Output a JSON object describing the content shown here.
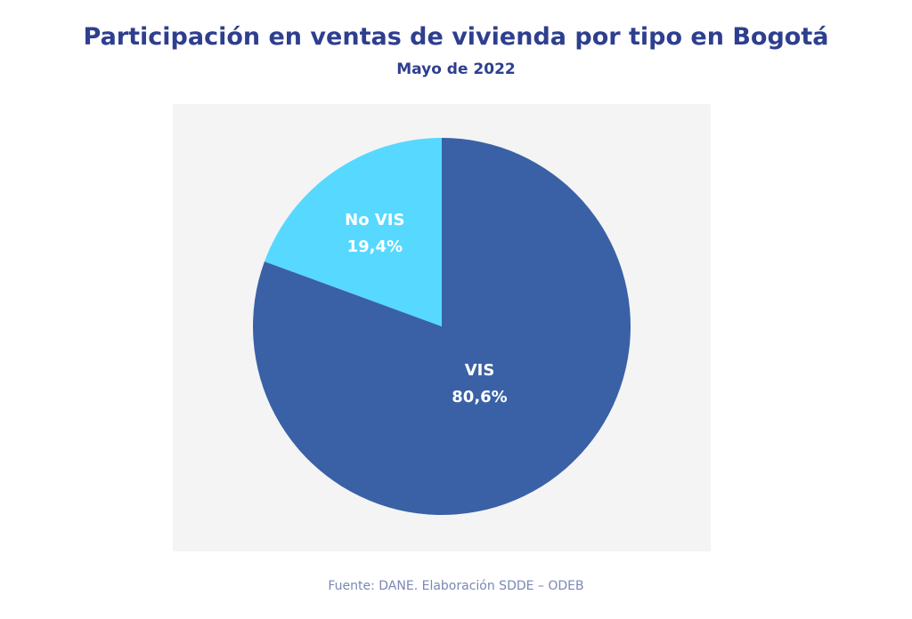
{
  "chart_data": {
    "type": "pie",
    "title": "Participación en ventas de vivienda por tipo en Bogotá",
    "subtitle": "Mayo de 2022",
    "slices": [
      {
        "label": "VIS",
        "value": 80.6,
        "value_label": "80,6%",
        "color": "#3a61a6"
      },
      {
        "label": "No VIS",
        "value": 19.4,
        "value_label": "19,4%",
        "color": "#57d8ff"
      }
    ],
    "start_angle": "12 o'clock",
    "direction": "clockwise",
    "legend": "none"
  },
  "source": "Fuente: DANE. Elaboración SDDE – ODEB",
  "colors": {
    "title": "#2e3f8f",
    "plot_background": "#f4f4f5",
    "source_text": "#7b87b4"
  }
}
